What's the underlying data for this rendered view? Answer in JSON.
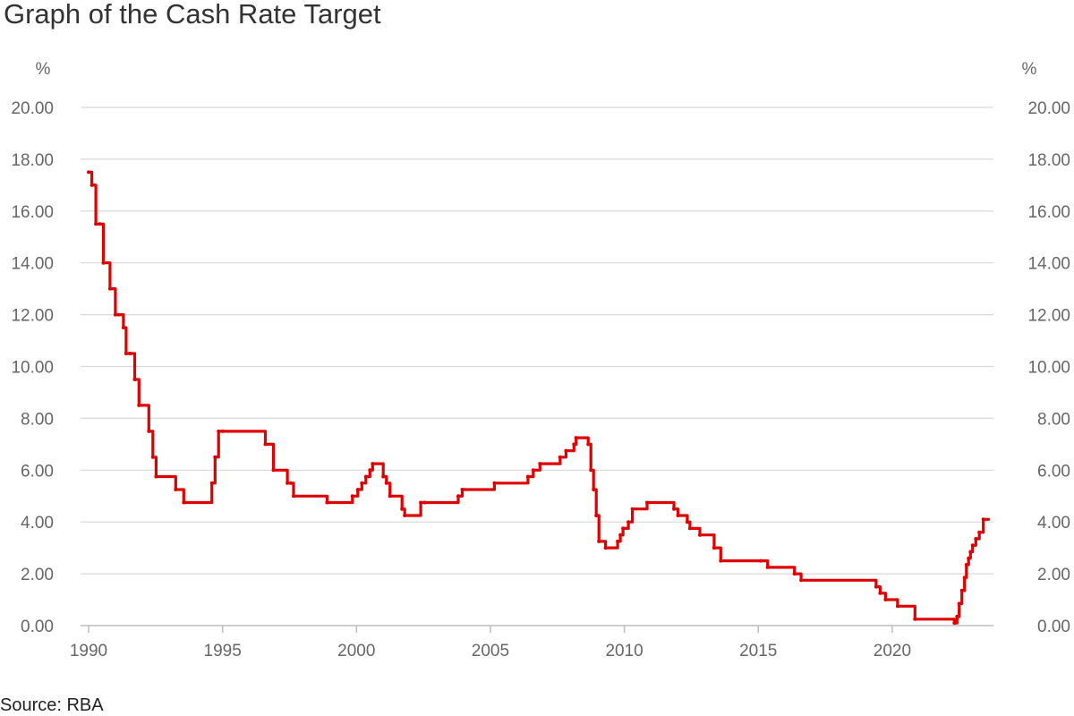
{
  "title": "Graph of the Cash Rate Target",
  "source": "Source: RBA",
  "colors": {
    "series": "#e00000",
    "grid": "#d9d9d9",
    "text": "#666666"
  },
  "chart_data": {
    "type": "line",
    "title": "Graph of the Cash Rate Target",
    "unit_left": "%",
    "unit_right": "%",
    "ylim": [
      0,
      20
    ],
    "xlim": [
      1990,
      2023.6
    ],
    "y_ticks": [
      "0.00",
      "2.00",
      "4.00",
      "6.00",
      "8.00",
      "10.00",
      "12.00",
      "14.00",
      "16.00",
      "18.00",
      "20.00"
    ],
    "x_ticks": [
      "1990",
      "1995",
      "2000",
      "2005",
      "2010",
      "2015",
      "2020"
    ],
    "grid": true,
    "series": [
      {
        "color": "#e00000",
        "step": true,
        "x": [
          1990.0,
          1990.12,
          1990.27,
          1990.42,
          1990.55,
          1990.8,
          1991.0,
          1991.12,
          1991.3,
          1991.4,
          1991.55,
          1991.72,
          1991.88,
          1992.25,
          1992.4,
          1992.52,
          1993.25,
          1993.55,
          1994.6,
          1994.72,
          1994.85,
          1995.0,
          1996.6,
          1996.9,
          1997.42,
          1997.55,
          1997.65,
          1998.9,
          1999.85,
          2000.05,
          2000.2,
          2000.35,
          2000.5,
          2000.6,
          2001.0,
          2001.12,
          2001.25,
          2001.7,
          2001.8,
          2002.4,
          2002.55,
          2003.8,
          2003.95,
          2005.15,
          2006.4,
          2006.6,
          2006.85,
          2007.6,
          2007.82,
          2008.12,
          2008.2,
          2008.65,
          2008.75,
          2008.85,
          2008.95,
          2009.05,
          2009.3,
          2009.75,
          2009.85,
          2009.95,
          2010.15,
          2010.3,
          2010.85,
          2011.85,
          2012.0,
          2012.35,
          2012.45,
          2012.82,
          2013.35,
          2013.6,
          2015.1,
          2015.35,
          2016.35,
          2016.6,
          2019.4,
          2019.55,
          2019.75,
          2020.2,
          2020.85,
          2022.32,
          2022.42,
          2022.5,
          2022.6,
          2022.7,
          2022.77,
          2022.85,
          2022.92,
          2023.0,
          2023.12,
          2023.25,
          2023.4
        ],
        "y": [
          17.5,
          17.0,
          15.5,
          15.5,
          14.0,
          13.0,
          12.0,
          12.0,
          11.5,
          10.5,
          10.5,
          9.5,
          8.5,
          7.5,
          6.5,
          5.75,
          5.25,
          4.75,
          5.5,
          6.5,
          7.5,
          7.5,
          7.0,
          6.0,
          5.5,
          5.5,
          5.0,
          4.75,
          5.0,
          5.25,
          5.5,
          5.75,
          6.0,
          6.25,
          5.75,
          5.5,
          5.0,
          4.5,
          4.25,
          4.75,
          4.75,
          5.0,
          5.25,
          5.5,
          5.75,
          6.0,
          6.25,
          6.5,
          6.75,
          7.0,
          7.25,
          7.0,
          6.0,
          5.25,
          4.25,
          3.25,
          3.0,
          3.25,
          3.5,
          3.75,
          4.0,
          4.5,
          4.75,
          4.5,
          4.25,
          4.0,
          3.75,
          3.5,
          3.0,
          2.5,
          2.5,
          2.25,
          2.0,
          1.75,
          1.5,
          1.25,
          1.0,
          0.75,
          0.25,
          0.1,
          0.35,
          0.85,
          1.35,
          1.85,
          2.35,
          2.6,
          2.85,
          3.1,
          3.35,
          3.6,
          4.1
        ]
      }
    ]
  }
}
